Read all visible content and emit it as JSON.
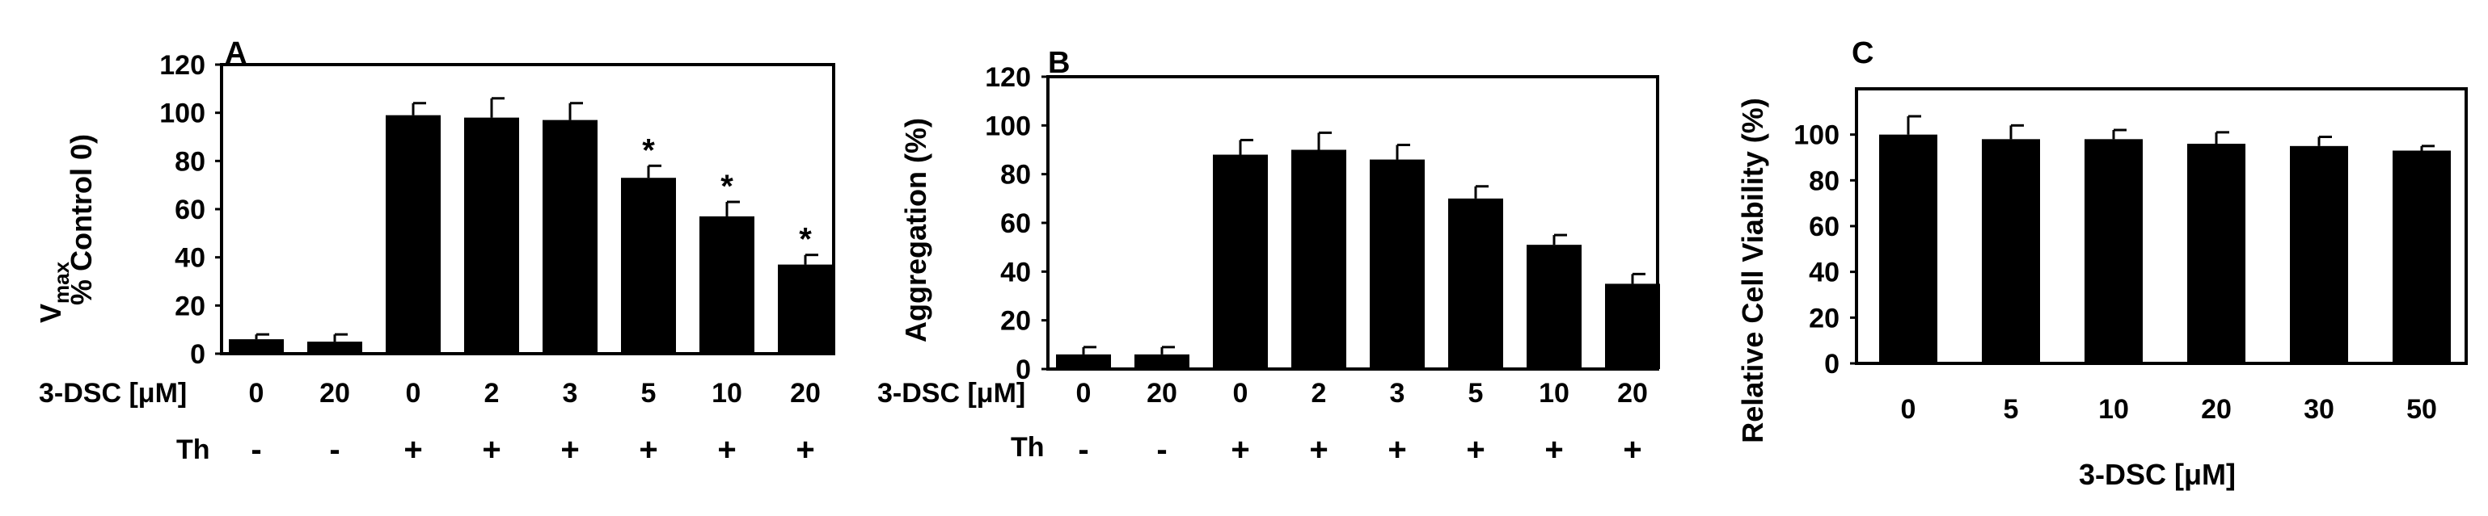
{
  "chart_data": [
    {
      "type": "bar",
      "panel_label": "A",
      "ylabel_main": "V",
      "ylabel_sub": "max",
      "ylabel_line2": "% Control 0)",
      "ylim": [
        0,
        120
      ],
      "yticks": [
        0,
        20,
        40,
        60,
        80,
        100,
        120
      ],
      "row_label_dose": "3-DSC [μM]",
      "row_label_th": "Th",
      "categories": [
        "0",
        "20",
        "0",
        "2",
        "3",
        "5",
        "10",
        "20"
      ],
      "th": [
        "-",
        "-",
        "+",
        "+",
        "+",
        "+",
        "+",
        "+"
      ],
      "values": [
        6,
        5,
        99,
        98,
        97,
        73,
        57,
        37
      ],
      "errors": [
        2,
        3,
        5,
        8,
        7,
        5,
        6,
        4
      ],
      "marks": [
        "",
        "",
        "",
        "",
        "",
        "*",
        "*",
        "*"
      ]
    },
    {
      "type": "bar",
      "panel_label": "B",
      "ylabel": "Aggregation (%)",
      "ylim": [
        0,
        120
      ],
      "yticks": [
        0,
        20,
        40,
        60,
        80,
        100,
        120
      ],
      "row_label_dose": "3-DSC [μM]",
      "row_label_th": "Th",
      "categories": [
        "0",
        "20",
        "0",
        "2",
        "3",
        "5",
        "10",
        "20"
      ],
      "th": [
        "-",
        "-",
        "+",
        "+",
        "+",
        "+",
        "+",
        "+"
      ],
      "values": [
        6,
        6,
        88,
        90,
        86,
        70,
        51,
        35
      ],
      "errors": [
        3,
        3,
        6,
        7,
        6,
        5,
        4,
        4
      ],
      "marks": [
        "",
        "",
        "",
        "",
        "",
        "",
        "",
        ""
      ]
    },
    {
      "type": "bar",
      "panel_label": "C",
      "ylabel": "Relative Cell Viability (%)",
      "xlabel": "3-DSC [μM]",
      "ylim": [
        0,
        120
      ],
      "yticks": [
        0,
        20,
        40,
        60,
        80,
        100
      ],
      "categories": [
        "0",
        "5",
        "10",
        "20",
        "30",
        "50"
      ],
      "values": [
        100,
        98,
        98,
        96,
        95,
        93
      ],
      "errors": [
        8,
        6,
        4,
        5,
        4,
        2
      ],
      "marks": [
        "",
        "",
        "",
        "",
        "",
        ""
      ]
    }
  ],
  "colors": {
    "bar": "#000000",
    "frame": "#000000",
    "background": "#ffffff"
  }
}
